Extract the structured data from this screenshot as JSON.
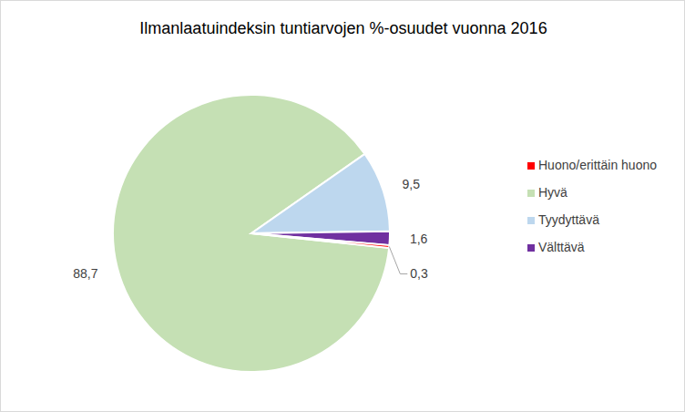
{
  "chart_data": {
    "type": "pie",
    "title": "Ilmanlaatuindeksin tuntiarvojen %-osuudet vuonna 2016",
    "categories": [
      "Hyvä",
      "Tyydyttävä",
      "Välttävä",
      "Huono/erittäin huono"
    ],
    "values": [
      88.7,
      9.5,
      1.6,
      0.3
    ],
    "value_labels": [
      "88,7",
      "9,5",
      "1,6",
      "0,3"
    ],
    "colors": [
      "#c5e0b4",
      "#bdd7ee",
      "#7030a0",
      "#ff0000"
    ],
    "legend": "right",
    "data_labels": true
  }
}
